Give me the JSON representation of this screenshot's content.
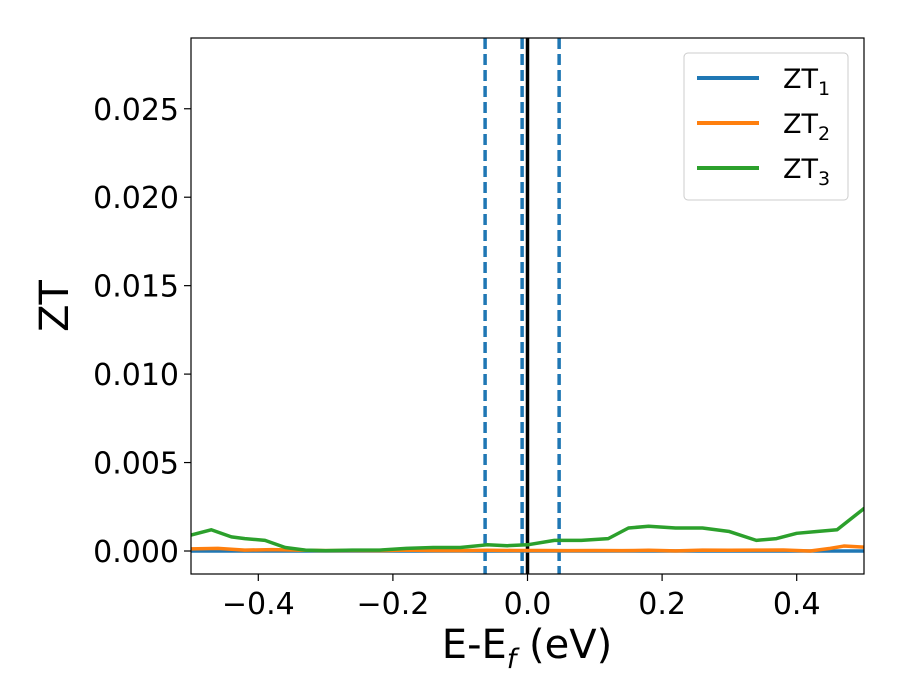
{
  "chart_data": {
    "type": "line",
    "title": "",
    "xlabel": {
      "main": "E-E",
      "sub": "f",
      "unit": " (eV)"
    },
    "ylabel": "ZT",
    "xlim": [
      -0.5,
      0.5
    ],
    "ylim": [
      -0.0013,
      0.029
    ],
    "xticks": [
      -0.4,
      -0.2,
      0.0,
      0.2,
      0.4
    ],
    "xtick_labels": [
      "−0.4",
      "−0.2",
      "0.0",
      "0.2",
      "0.4"
    ],
    "yticks": [
      0.0,
      0.005,
      0.01,
      0.015,
      0.02,
      0.025
    ],
    "ytick_labels": [
      "0.000",
      "0.005",
      "0.010",
      "0.015",
      "0.020",
      "0.025"
    ],
    "grid": false,
    "legend_position": "top-right",
    "series": [
      {
        "name": "ZT",
        "name_sub": "1",
        "color": "#1f77b4",
        "x": [
          -0.5,
          0.5
        ],
        "y": [
          0.0,
          0.0
        ]
      },
      {
        "name": "ZT",
        "name_sub": "2",
        "color": "#ff7f0e",
        "x": [
          -0.5,
          -0.46,
          -0.42,
          -0.38,
          -0.34,
          -0.3,
          -0.26,
          -0.22,
          -0.18,
          -0.14,
          -0.1,
          -0.06,
          -0.02,
          0.02,
          0.06,
          0.1,
          0.14,
          0.18,
          0.22,
          0.26,
          0.3,
          0.34,
          0.38,
          0.42,
          0.45,
          0.47,
          0.5
        ],
        "y": [
          0.00012,
          0.00015,
          5e-05,
          8e-05,
          5e-05,
          2e-05,
          3e-05,
          2e-05,
          5e-05,
          3e-05,
          2e-05,
          4e-05,
          3e-05,
          3e-05,
          2e-05,
          3e-05,
          2e-05,
          4e-05,
          1e-05,
          5e-05,
          4e-05,
          5e-05,
          6e-05,
          0.0,
          0.00015,
          0.00028,
          0.00022
        ]
      },
      {
        "name": "ZT",
        "name_sub": "3",
        "color": "#2ca02c",
        "x": [
          -0.5,
          -0.47,
          -0.44,
          -0.42,
          -0.39,
          -0.36,
          -0.33,
          -0.3,
          -0.26,
          -0.22,
          -0.18,
          -0.14,
          -0.1,
          -0.06,
          -0.03,
          0.0,
          0.04,
          0.08,
          0.12,
          0.15,
          0.18,
          0.22,
          0.26,
          0.3,
          0.34,
          0.37,
          0.4,
          0.43,
          0.46,
          0.48,
          0.5
        ],
        "y": [
          0.0009,
          0.0012,
          0.0008,
          0.0007,
          0.0006,
          0.0002,
          5e-05,
          2e-05,
          5e-05,
          5e-05,
          0.00015,
          0.0002,
          0.0002,
          0.00035,
          0.0003,
          0.00035,
          0.0006,
          0.0006,
          0.0007,
          0.0013,
          0.0014,
          0.0013,
          0.0013,
          0.0011,
          0.0006,
          0.0007,
          0.001,
          0.0011,
          0.0012,
          0.0018,
          0.0024
        ]
      }
    ],
    "vlines": [
      {
        "x": -0.063,
        "style": "dashed",
        "color": "#1f77b4"
      },
      {
        "x": -0.008,
        "style": "dashed",
        "color": "#1f77b4"
      },
      {
        "x": 0.047,
        "style": "dashed",
        "color": "#1f77b4"
      },
      {
        "x": 0.0,
        "style": "solid",
        "color": "#000000"
      }
    ]
  }
}
